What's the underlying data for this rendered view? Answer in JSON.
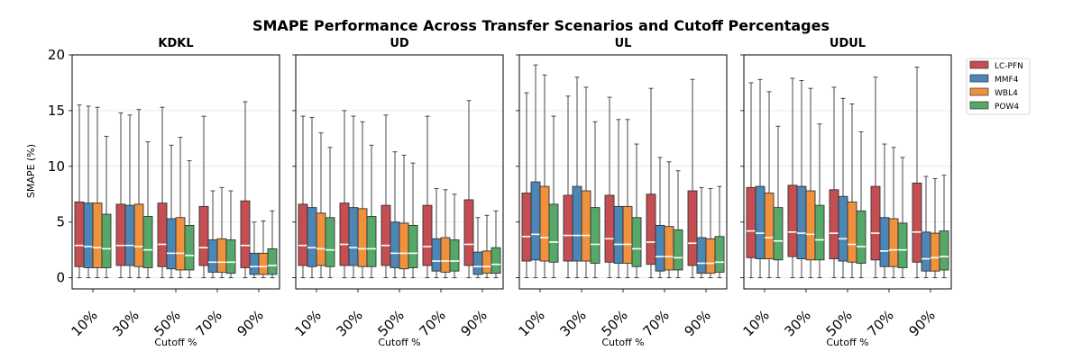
{
  "chart_data": {
    "type": "box",
    "title": "SMAPE Performance Across Transfer Scenarios and Cutoff Percentages",
    "ylabel": "SMAPE (%)",
    "xlabel": "Cutoff %",
    "ylim": [
      -1,
      20
    ],
    "yticks": [
      0,
      5,
      10,
      15,
      20
    ],
    "grid": "horizontal-light",
    "legend_position": "outside-right",
    "categories": [
      "10%",
      "30%",
      "50%",
      "70%",
      "90%"
    ],
    "series_names": [
      "LC-PFN",
      "MMF4",
      "WBL4",
      "POW4"
    ],
    "series_colors": [
      "#c44e52",
      "#4c86b5",
      "#f0913d",
      "#55a868"
    ],
    "panels": [
      {
        "title": "KDKL",
        "boxes": [
          [
            [
              0,
              1.0,
              2.9,
              6.8,
              15.5
            ],
            [
              0,
              0.9,
              2.8,
              6.7,
              15.4
            ],
            [
              0,
              0.9,
              2.7,
              6.7,
              15.3
            ],
            [
              0,
              0.9,
              2.6,
              5.7,
              12.7
            ]
          ],
          [
            [
              0,
              1.1,
              2.9,
              6.6,
              14.8
            ],
            [
              0,
              1.1,
              2.9,
              6.5,
              14.6
            ],
            [
              0,
              1.0,
              2.8,
              6.6,
              15.1
            ],
            [
              0,
              0.9,
              2.5,
              5.5,
              12.2
            ]
          ],
          [
            [
              0,
              1.0,
              3.0,
              6.7,
              15.3
            ],
            [
              0,
              0.8,
              2.2,
              5.3,
              11.9
            ],
            [
              0,
              0.7,
              2.2,
              5.4,
              12.6
            ],
            [
              0,
              0.7,
              2.0,
              4.7,
              10.5
            ]
          ],
          [
            [
              0,
              1.1,
              2.7,
              6.4,
              14.5
            ],
            [
              0,
              0.5,
              1.4,
              3.4,
              7.8
            ],
            [
              0,
              0.5,
              1.4,
              3.5,
              8.1
            ],
            [
              0,
              0.4,
              1.4,
              3.4,
              7.8
            ]
          ],
          [
            [
              0,
              0.9,
              2.9,
              6.9,
              15.8
            ],
            [
              0,
              0.3,
              1.0,
              2.2,
              5.0
            ],
            [
              0,
              0.3,
              1.0,
              2.2,
              5.1
            ],
            [
              0,
              0.3,
              1.1,
              2.6,
              6.0
            ]
          ]
        ]
      },
      {
        "title": "UD",
        "boxes": [
          [
            [
              0,
              1.1,
              2.9,
              6.6,
              14.5
            ],
            [
              0,
              1.0,
              2.7,
              6.3,
              14.4
            ],
            [
              0,
              1.1,
              2.6,
              5.8,
              13.0
            ],
            [
              0,
              1.0,
              2.5,
              5.4,
              11.7
            ]
          ],
          [
            [
              0,
              1.1,
              3.0,
              6.7,
              15.0
            ],
            [
              0,
              1.1,
              2.7,
              6.3,
              14.5
            ],
            [
              0,
              1.0,
              2.6,
              6.2,
              14.0
            ],
            [
              0,
              1.0,
              2.6,
              5.5,
              11.9
            ]
          ],
          [
            [
              0,
              1.1,
              2.9,
              6.5,
              14.6
            ],
            [
              0,
              0.9,
              2.2,
              5.0,
              11.3
            ],
            [
              0,
              0.8,
              2.2,
              4.9,
              11.0
            ],
            [
              0,
              0.9,
              2.2,
              4.7,
              10.3
            ]
          ],
          [
            [
              0,
              1.1,
              2.8,
              6.5,
              14.5
            ],
            [
              0,
              0.6,
              1.5,
              3.5,
              8.0
            ],
            [
              0,
              0.5,
              1.5,
              3.6,
              7.9
            ],
            [
              0,
              0.6,
              1.5,
              3.4,
              7.5
            ]
          ],
          [
            [
              0,
              1.1,
              3.0,
              7.0,
              15.9
            ],
            [
              0,
              0.3,
              1.0,
              2.3,
              5.4
            ],
            [
              0,
              0.4,
              1.0,
              2.4,
              5.6
            ],
            [
              0,
              0.4,
              1.2,
              2.7,
              6.0
            ]
          ]
        ]
      },
      {
        "title": "UL",
        "boxes": [
          [
            [
              0,
              1.5,
              3.7,
              7.6,
              16.6
            ],
            [
              0,
              1.6,
              3.9,
              8.6,
              19.1
            ],
            [
              0,
              1.5,
              3.6,
              8.2,
              18.2
            ],
            [
              0,
              1.4,
              3.2,
              6.6,
              14.5
            ]
          ],
          [
            [
              0,
              1.5,
              3.8,
              7.4,
              16.3
            ],
            [
              0,
              1.5,
              3.8,
              8.2,
              18.0
            ],
            [
              0,
              1.5,
              3.8,
              7.8,
              17.1
            ],
            [
              0,
              1.3,
              3.0,
              6.3,
              14.0
            ]
          ],
          [
            [
              0,
              1.4,
              3.5,
              7.4,
              16.2
            ],
            [
              0,
              1.3,
              3.0,
              6.4,
              14.2
            ],
            [
              0,
              1.3,
              3.0,
              6.4,
              14.2
            ],
            [
              0,
              1.0,
              2.6,
              5.4,
              12.0
            ]
          ],
          [
            [
              0,
              1.2,
              3.2,
              7.5,
              17.0
            ],
            [
              0,
              0.6,
              1.9,
              4.7,
              10.8
            ],
            [
              0,
              0.7,
              1.9,
              4.6,
              10.4
            ],
            [
              0,
              0.7,
              1.8,
              4.3,
              9.6
            ]
          ],
          [
            [
              0,
              1.1,
              3.1,
              7.8,
              17.8
            ],
            [
              0,
              0.4,
              1.3,
              3.6,
              8.1
            ],
            [
              0,
              0.4,
              1.3,
              3.5,
              8.0
            ],
            [
              0,
              0.5,
              1.4,
              3.7,
              8.2
            ]
          ]
        ]
      },
      {
        "title": "UDUL",
        "boxes": [
          [
            [
              0,
              1.8,
              4.2,
              8.1,
              17.5
            ],
            [
              0,
              1.7,
              4.0,
              8.2,
              17.8
            ],
            [
              0,
              1.7,
              3.6,
              7.6,
              16.7
            ],
            [
              0,
              1.6,
              3.3,
              6.3,
              13.6
            ]
          ],
          [
            [
              0,
              1.9,
              4.1,
              8.3,
              17.9
            ],
            [
              0,
              1.7,
              4.0,
              8.2,
              17.7
            ],
            [
              0,
              1.6,
              3.9,
              7.8,
              17.0
            ],
            [
              0,
              1.6,
              3.4,
              6.5,
              13.8
            ]
          ],
          [
            [
              0,
              1.7,
              4.0,
              7.9,
              17.1
            ],
            [
              0,
              1.5,
              3.5,
              7.3,
              16.1
            ],
            [
              0,
              1.4,
              3.0,
              6.8,
              15.6
            ],
            [
              0,
              1.3,
              2.8,
              6.0,
              13.1
            ]
          ],
          [
            [
              0,
              1.6,
              4.0,
              8.2,
              18.0
            ],
            [
              0,
              1.0,
              2.4,
              5.4,
              12.0
            ],
            [
              0,
              1.0,
              2.5,
              5.3,
              11.7
            ],
            [
              0,
              0.9,
              2.5,
              4.9,
              10.8
            ]
          ],
          [
            [
              0,
              1.4,
              4.1,
              8.5,
              18.9
            ],
            [
              0,
              0.6,
              1.7,
              4.1,
              9.1
            ],
            [
              0,
              0.6,
              1.8,
              4.0,
              8.9
            ],
            [
              0,
              0.7,
              1.9,
              4.2,
              9.2
            ]
          ]
        ]
      }
    ]
  }
}
